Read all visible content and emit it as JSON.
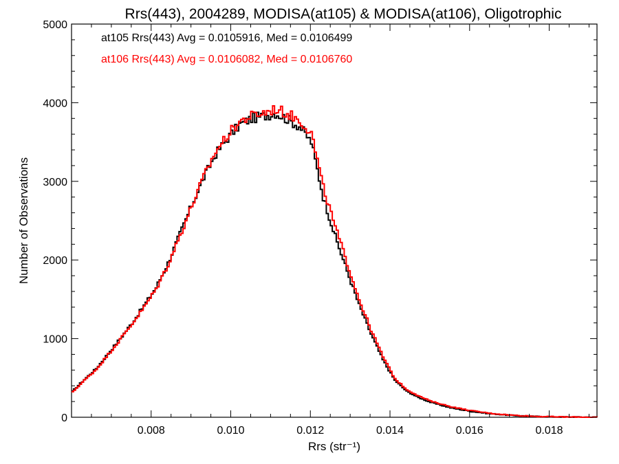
{
  "chart_data": {
    "type": "line",
    "title": "Rrs(443), 2004289, MODISA(at105) & MODISA(at106), Oligotrophic",
    "xlabel": "Rrs (str⁻¹)",
    "ylabel": "Number of Observations",
    "xlim": [
      0.006,
      0.0192
    ],
    "ylim": [
      0,
      5000
    ],
    "x_ticks": [
      0.008,
      0.01,
      0.012,
      0.014,
      0.016,
      0.018
    ],
    "x_tick_labels": [
      "0.008",
      "0.010",
      "0.012",
      "0.014",
      "0.016",
      "0.018"
    ],
    "y_ticks": [
      0,
      1000,
      2000,
      3000,
      4000,
      5000
    ],
    "y_tick_labels": [
      "0",
      "1000",
      "2000",
      "3000",
      "4000",
      "5000"
    ],
    "grid": false,
    "legend_position": "top-left",
    "series": [
      {
        "name": "at105",
        "legend_text": "at105 Rrs(443) Avg = 0.0105916, Med = 0.0106499",
        "color": "#000000",
        "step": true,
        "x": [
          0.006,
          0.0063,
          0.0066,
          0.0069,
          0.0072,
          0.0075,
          0.0078,
          0.0081,
          0.0084,
          0.0087,
          0.009,
          0.0093,
          0.0096,
          0.0099,
          0.0102,
          0.0105,
          0.0108,
          0.0111,
          0.0114,
          0.0117,
          0.012,
          0.0123,
          0.0126,
          0.0129,
          0.0132,
          0.0135,
          0.0138,
          0.0141,
          0.0144,
          0.0147,
          0.015,
          0.0155,
          0.016,
          0.0165,
          0.017,
          0.0175,
          0.018,
          0.0185,
          0.0192
        ],
        "y": [
          330,
          480,
          620,
          810,
          1000,
          1200,
          1420,
          1650,
          1960,
          2330,
          2700,
          3050,
          3350,
          3550,
          3720,
          3800,
          3830,
          3870,
          3790,
          3700,
          3500,
          2800,
          2300,
          1860,
          1430,
          1060,
          730,
          470,
          330,
          250,
          190,
          120,
          75,
          45,
          25,
          12,
          6,
          3,
          1
        ]
      },
      {
        "name": "at106",
        "legend_text": "at106 Rrs(443) Avg = 0.0106082, Med = 0.0106760",
        "color": "#ff0000",
        "step": true,
        "x": [
          0.006,
          0.0063,
          0.0066,
          0.0069,
          0.0072,
          0.0075,
          0.0078,
          0.0081,
          0.0084,
          0.0087,
          0.009,
          0.0093,
          0.0096,
          0.0099,
          0.0102,
          0.0105,
          0.0108,
          0.0111,
          0.0114,
          0.0117,
          0.012,
          0.0123,
          0.0126,
          0.0129,
          0.0132,
          0.0135,
          0.0138,
          0.0141,
          0.0144,
          0.0147,
          0.015,
          0.0155,
          0.016,
          0.0165,
          0.017,
          0.0175,
          0.018,
          0.0185,
          0.0192
        ],
        "y": [
          320,
          470,
          610,
          800,
          990,
          1190,
          1400,
          1630,
          1940,
          2310,
          2690,
          3060,
          3380,
          3590,
          3760,
          3830,
          3870,
          3920,
          3860,
          3780,
          3620,
          2920,
          2420,
          1960,
          1500,
          1110,
          770,
          490,
          350,
          270,
          205,
          135,
          85,
          50,
          28,
          14,
          7,
          3,
          1
        ]
      }
    ]
  }
}
